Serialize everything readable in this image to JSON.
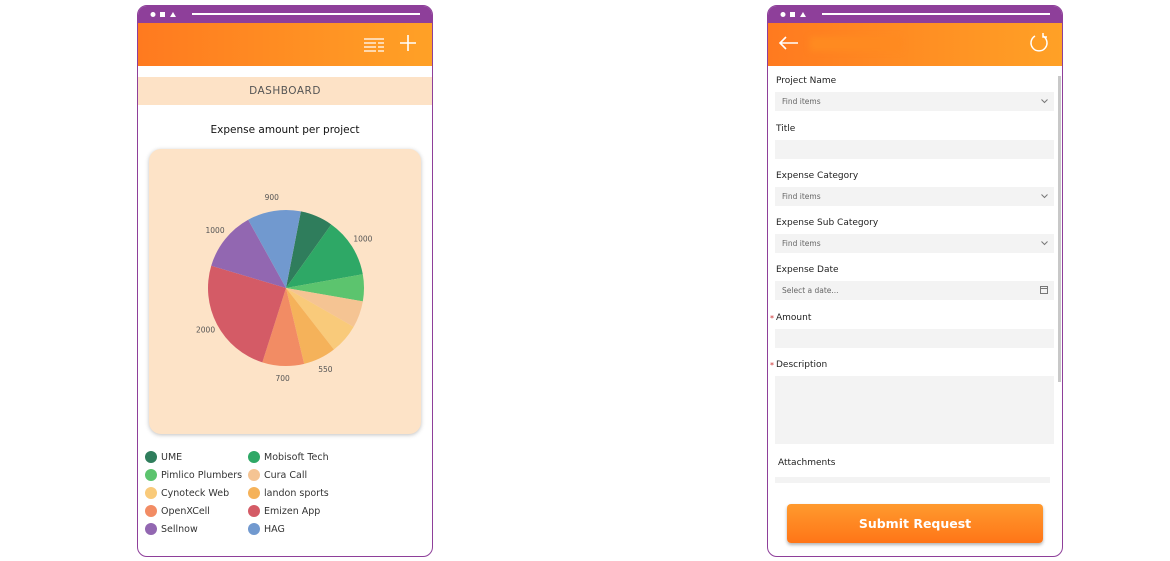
{
  "dashboard": {
    "header": "DASHBOARD"
  },
  "chart_data": {
    "type": "pie",
    "title": "Expense amount per project",
    "categories": [
      "UME",
      "Mobisoft Tech",
      "Pimlico Plumbers",
      "Cura Call",
      "Cynoteck Web",
      "landon sports",
      "OpenXCell",
      "Emizen App",
      "Sellnow",
      "HAG"
    ],
    "values": [
      550,
      1000,
      450,
      450,
      500,
      550,
      700,
      2000,
      1000,
      900
    ],
    "value_labels": [
      null,
      "1000",
      null,
      null,
      null,
      "550",
      "700",
      "2000",
      "1000",
      "900"
    ],
    "colors": [
      "#2f7d5c",
      "#2ea866",
      "#5cc46e",
      "#f5c493",
      "#f9ca7a",
      "#f5b25a",
      "#f28c64",
      "#d45b66",
      "#9267b1",
      "#7199cf"
    ]
  },
  "form": {
    "fields": [
      {
        "label": "Project Name",
        "placeholder": "Find items",
        "kind": "dropdown"
      },
      {
        "label": "Title",
        "kind": "text"
      },
      {
        "label": "Expense Category",
        "placeholder": "Find items",
        "kind": "dropdown"
      },
      {
        "label": "Expense Sub Category",
        "placeholder": "Find items",
        "kind": "dropdown"
      },
      {
        "label": "Expense Date",
        "placeholder": "Select a date...",
        "kind": "date"
      },
      {
        "label": "Amount",
        "marker": "*",
        "kind": "text"
      },
      {
        "label": "Description",
        "marker": "*",
        "kind": "textarea"
      }
    ],
    "attachments": "Attachments",
    "submit": "Submit Request"
  }
}
